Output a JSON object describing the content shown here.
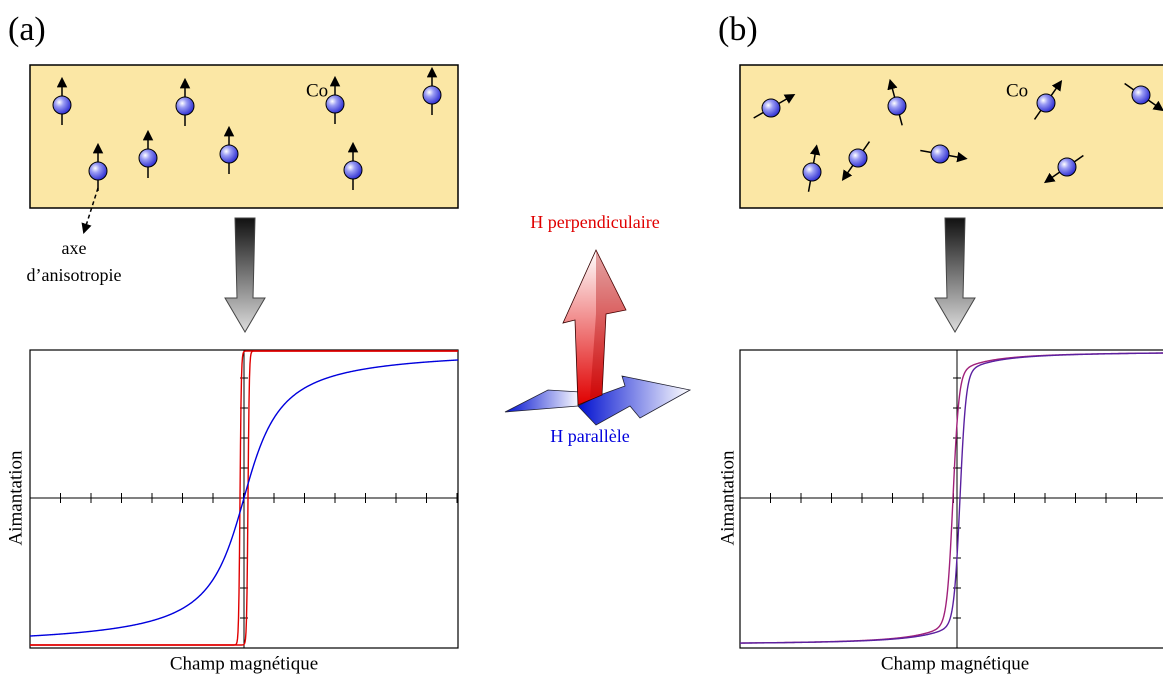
{
  "panels": [
    {
      "label": "(a)",
      "co_label": "Co",
      "axis_note": [
        "axe",
        "d’anisotropie"
      ],
      "y_label": "Aimantation",
      "x_label": "Champ magnétique"
    },
    {
      "label": "(b)",
      "co_label": "Co",
      "y_label": "Aimantation",
      "x_label": "Champ magnétique"
    }
  ],
  "field_arrows": {
    "perpendicular": "H perpendiculaire",
    "parallel": "H parallèle"
  }
}
